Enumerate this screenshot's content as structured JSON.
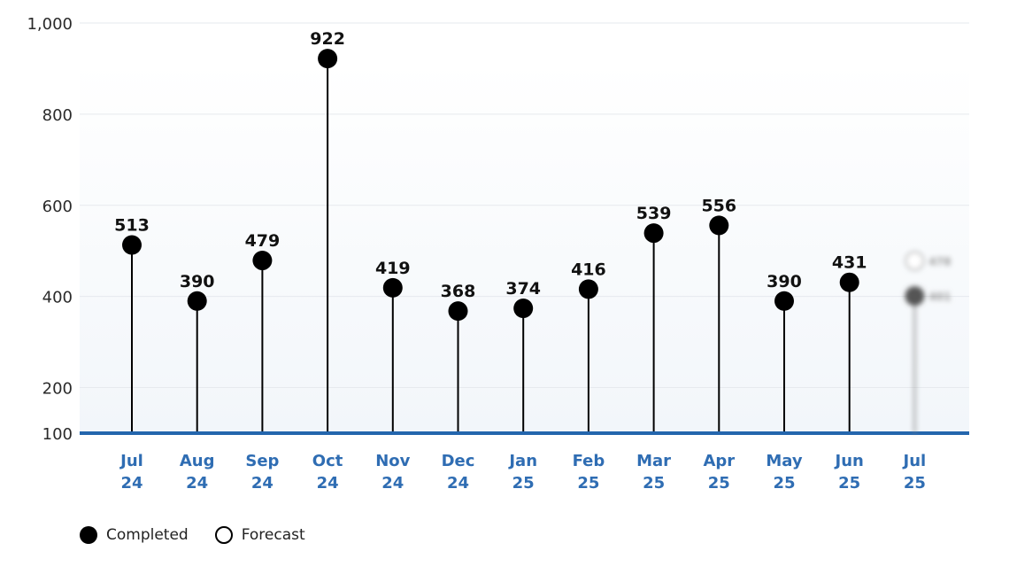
{
  "chart_data": {
    "type": "lollipop",
    "categories": [
      "Jul 24",
      "Aug 24",
      "Sep 24",
      "Oct 24",
      "Nov 24",
      "Dec 24",
      "Jan 25",
      "Feb 25",
      "Mar 25",
      "Apr 25",
      "May 25",
      "Jun 25",
      "Jul 25"
    ],
    "tick_lines": [
      [
        "Jul",
        "24"
      ],
      [
        "Aug",
        "24"
      ],
      [
        "Sep",
        "24"
      ],
      [
        "Oct",
        "24"
      ],
      [
        "Nov",
        "24"
      ],
      [
        "Dec",
        "24"
      ],
      [
        "Jan",
        "25"
      ],
      [
        "Feb",
        "25"
      ],
      [
        "Mar",
        "25"
      ],
      [
        "Apr",
        "25"
      ],
      [
        "May",
        "25"
      ],
      [
        "Jun",
        "25"
      ],
      [
        "Jul",
        "25"
      ]
    ],
    "series": [
      {
        "name": "Completed",
        "values": [
          513,
          390,
          479,
          922,
          419,
          368,
          374,
          416,
          539,
          556,
          390,
          431,
          401
        ]
      },
      {
        "name": "Forecast",
        "values": [
          null,
          null,
          null,
          null,
          null,
          null,
          null,
          null,
          null,
          null,
          null,
          null,
          478
        ]
      }
    ],
    "data_labels": [
      "513",
      "390",
      "479",
      "922",
      "419",
      "368",
      "374",
      "416",
      "539",
      "556",
      "390",
      "431"
    ],
    "blurred_categories": [
      "Jul 25"
    ],
    "y_ticks": [
      100,
      200,
      400,
      600,
      800,
      1000
    ],
    "y_tick_labels": [
      "100",
      "200",
      "400",
      "600",
      "800",
      "1,000"
    ],
    "ylim": [
      100,
      1000
    ],
    "xlabel": "",
    "ylabel": "",
    "grid": true,
    "legend_position": "bottom-left",
    "colors": {
      "completed": "#000000",
      "forecast_fill": "#ffffff",
      "baseline": "#2466ad",
      "x_tick_text": "#2f6db3",
      "grid": "#e6e9ee",
      "plot_bg_top": "#ffffff",
      "plot_bg_bottom": "#f2f6fa"
    }
  },
  "legend": {
    "completed_label": "Completed",
    "forecast_label": "Forecast"
  }
}
